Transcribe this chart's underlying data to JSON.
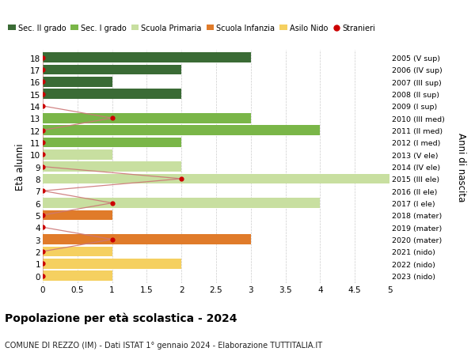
{
  "ages": [
    18,
    17,
    16,
    15,
    14,
    13,
    12,
    11,
    10,
    9,
    8,
    7,
    6,
    5,
    4,
    3,
    2,
    1,
    0
  ],
  "anni_nascita_labels": [
    "2005 (V sup)",
    "2006 (IV sup)",
    "2007 (III sup)",
    "2008 (II sup)",
    "2009 (I sup)",
    "2010 (III med)",
    "2011 (II med)",
    "2012 (I med)",
    "2013 (V ele)",
    "2014 (IV ele)",
    "2015 (III ele)",
    "2016 (II ele)",
    "2017 (I ele)",
    "2018 (mater)",
    "2019 (mater)",
    "2020 (mater)",
    "2021 (nido)",
    "2022 (nido)",
    "2023 (nido)"
  ],
  "bar_values": [
    3,
    2,
    1,
    2,
    0,
    3,
    4,
    2,
    1,
    2,
    5,
    0,
    4,
    1,
    0,
    3,
    1,
    2,
    1
  ],
  "bar_colors": [
    "#3a6b35",
    "#3a6b35",
    "#3a6b35",
    "#3a6b35",
    "#3a6b35",
    "#7ab648",
    "#7ab648",
    "#7ab648",
    "#c8dfa0",
    "#c8dfa0",
    "#c8dfa0",
    "#c8dfa0",
    "#c8dfa0",
    "#e07b2a",
    "#e07b2a",
    "#e07b2a",
    "#f5d060",
    "#f5d060",
    "#f5d060"
  ],
  "stranieri_values": [
    0,
    0,
    0,
    0,
    0,
    1,
    0,
    0,
    0,
    0,
    2,
    0,
    1,
    0,
    0,
    1,
    0,
    0,
    0
  ],
  "legend_labels": [
    "Sec. II grado",
    "Sec. I grado",
    "Scuola Primaria",
    "Scuola Infanzia",
    "Asilo Nido",
    "Stranieri"
  ],
  "legend_colors": [
    "#3a6b35",
    "#7ab648",
    "#c8dfa0",
    "#e07b2a",
    "#f5d060",
    "#cc0000"
  ],
  "ylabel_label": "Età alunni",
  "right_ylabel": "Anni di nascita",
  "title": "Popolazione per età scolastica - 2024",
  "subtitle": "COMUNE DI REZZO (IM) - Dati ISTAT 1° gennaio 2024 - Elaborazione TUTTITALIA.IT",
  "xlim": [
    0,
    5.0
  ],
  "xticks": [
    0,
    0.5,
    1.0,
    1.5,
    2.0,
    2.5,
    3.0,
    3.5,
    4.0,
    4.5,
    5.0
  ],
  "background_color": "#ffffff",
  "stranieri_color": "#cc0000",
  "stranieri_line_color": "#cc7777"
}
